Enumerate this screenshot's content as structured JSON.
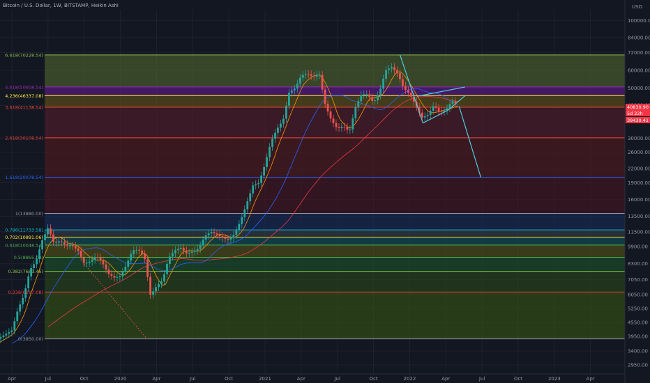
{
  "header": {
    "title": "Bitcoin / U.S. Dollar, 1W, BITSTAMP, Heikin Ashi"
  },
  "chart_data": {
    "type": "candlestick",
    "log_scale": true,
    "currency_label": "USD",
    "price_axis_ticks": [
      "120000.00",
      "100000.00",
      "84000.00",
      "72000.00",
      "60000.00",
      "50000.00",
      "42000.00",
      "30000.00",
      "26000.00",
      "22000.00",
      "19000.00",
      "16000.00",
      "13500.00",
      "11500.00",
      "9900.00",
      "8300.00",
      "7050.00",
      "6050.00",
      "5250.00",
      "4550.00",
      "3950.00",
      "3400.00",
      "2950.00"
    ],
    "time_axis_ticks": [
      "Apr",
      "Jul",
      "Oct",
      "2020",
      "Apr",
      "Jul",
      "Oct",
      "2021",
      "Apr",
      "Jul",
      "Oct",
      "2022",
      "Apr",
      "Jul",
      "Oct",
      "2023",
      "Apr",
      "Jul"
    ],
    "fib_levels": [
      {
        "label": "6.618(70228.54)",
        "price": 70228.54,
        "color": "#8bc34a"
      },
      {
        "label": "4.618(50608.54)",
        "price": 50608.54,
        "color": "#9c27b0"
      },
      {
        "label": "4.236(46337.08)",
        "price": 46337.08,
        "color": "#ffeb3b"
      },
      {
        "label": "3.618(41138.54)",
        "price": 41138.54,
        "color": "#f44336"
      },
      {
        "label": "2.618(30108.54)",
        "price": 30108.54,
        "color": "#f44336"
      },
      {
        "label": "1.618(20078.54)",
        "price": 20078.54,
        "color": "#2962ff"
      },
      {
        "label": "1(13880.00)",
        "price": 13880,
        "color": "#9598a1"
      },
      {
        "label": "0.786(11733.58)",
        "price": 11733.58,
        "color": "#00bcd4"
      },
      {
        "label": "0.702(10891.06)",
        "price": 10891.06,
        "color": "#ffeb3b"
      },
      {
        "label": "0.618(10048.54)",
        "price": 10048.54,
        "color": "#4caf50"
      },
      {
        "label": "0.5(8865.00)",
        "price": 8865,
        "color": "#4caf50"
      },
      {
        "label": "0.382(7681.46)",
        "price": 7681.46,
        "color": "#8bc34a"
      },
      {
        "label": "0.236(6217.08)",
        "price": 6217.08,
        "color": "#f44336"
      },
      {
        "label": "0(3850.00)",
        "price": 3850,
        "color": "#9598a1"
      }
    ],
    "price_tags": [
      {
        "text": "40830.90",
        "color": "#f23645"
      },
      {
        "text": "5d 22h",
        "color": "#f23645"
      },
      {
        "text": "39430.41",
        "color": "#f23645"
      }
    ]
  }
}
